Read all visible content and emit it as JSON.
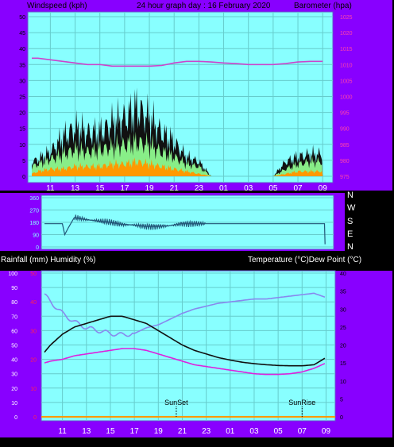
{
  "header": {
    "left": "Windspeed (kph)",
    "center": "24 hour graph day : 16 February 2020",
    "right": "Barometer (hpa)"
  },
  "dir_labels": [
    "N",
    "W",
    "S",
    "E",
    "N"
  ],
  "lower_header": {
    "left": "Rainfall (mm)  Humidity (%)",
    "right": "Temperature (°C)Dew Point (°C)"
  },
  "x_ticks": [
    "11",
    "13",
    "15",
    "17",
    "19",
    "21",
    "23",
    "01",
    "03",
    "05",
    "07",
    "09"
  ],
  "colors": {
    "panel_bg": "#88ffff",
    "frame": "#8800ff",
    "pressure": "#cc44cc",
    "humidity": "#8888ee",
    "temperature": "#111111",
    "dewpoint": "#dd22dd",
    "gust": "#111111",
    "wind_avg": "#88ee88",
    "wind_low": "#ff9900",
    "direction": "#225577"
  },
  "chart_data": [
    {
      "type": "area",
      "title": "24 hour graph day : 16 February 2020",
      "y_left_label": "Windspeed (kph)",
      "y_right_label": "Barometer (hpa)",
      "y_left_ticks": [
        "0",
        "5",
        "10",
        "15",
        "20",
        "25",
        "30",
        "35",
        "40",
        "45",
        "50"
      ],
      "y_right_ticks": [
        "975",
        "980",
        "985",
        "990",
        "995",
        "1000",
        "1005",
        "1010",
        "1015",
        "1020",
        "1025"
      ],
      "ylim_left": [
        0,
        50
      ],
      "ylim_right": [
        975,
        1025
      ],
      "x_hours": [
        9.5,
        10,
        11,
        12,
        13,
        14,
        15,
        16,
        17,
        18,
        19,
        20,
        21,
        22,
        23,
        24,
        25,
        26,
        27,
        28,
        29,
        30,
        31,
        32,
        33
      ],
      "series": [
        {
          "name": "Gust",
          "values": [
            6,
            7,
            10,
            16,
            20,
            18,
            18,
            22,
            24,
            28,
            24,
            18,
            14,
            8,
            6,
            0,
            0,
            0,
            0,
            0,
            0,
            6,
            8,
            9,
            9
          ]
        },
        {
          "name": "Average",
          "values": [
            4,
            5,
            7,
            9,
            11,
            10,
            11,
            12,
            13,
            14,
            13,
            10,
            8,
            5,
            4,
            0,
            0,
            0,
            0,
            0,
            0,
            3,
            5,
            6,
            6
          ]
        },
        {
          "name": "Low",
          "values": [
            1,
            2,
            3,
            3,
            4,
            4,
            4,
            5,
            5,
            6,
            5,
            4,
            3,
            2,
            1,
            0,
            0,
            0,
            0,
            0,
            0,
            1,
            2,
            2,
            2
          ]
        },
        {
          "name": "Pressure",
          "axis": "right",
          "values": [
            1012,
            1012,
            1011.5,
            1011,
            1010.5,
            1010,
            1010,
            1009.5,
            1009.5,
            1009.5,
            1009.5,
            1009.7,
            1010.5,
            1011,
            1011,
            1010.8,
            1010.5,
            1010.3,
            1010,
            1010,
            1010,
            1010.3,
            1010.8,
            1011,
            1011
          ]
        }
      ]
    },
    {
      "type": "line",
      "y_ticks": [
        "0",
        "90",
        "180",
        "270",
        "360"
      ],
      "ylim": [
        0,
        360
      ],
      "series": [
        {
          "name": "Direction",
          "x_hours": [
            9.5,
            10,
            11,
            11.2,
            11.5,
            12,
            13,
            14,
            15,
            16,
            17,
            18,
            19,
            20,
            21,
            22,
            23,
            33,
            33.05
          ],
          "values": [
            170,
            170,
            170,
            90,
            140,
            215,
            200,
            190,
            180,
            165,
            160,
            150,
            150,
            155,
            170,
            170,
            170,
            170,
            20
          ]
        }
      ]
    },
    {
      "type": "line",
      "y_left_ticks": [
        "0",
        "10",
        "20",
        "30",
        "40",
        "50",
        "60",
        "70",
        "80",
        "90",
        "100"
      ],
      "y_left_rain_ticks": [
        "0",
        "10",
        "20",
        "30",
        "40",
        "50"
      ],
      "y_right_ticks": [
        "0",
        "5",
        "10",
        "15",
        "20",
        "25",
        "30",
        "35",
        "40"
      ],
      "ylim_humidity": [
        0,
        100
      ],
      "ylim_temperature": [
        0,
        40
      ],
      "x_hours": [
        9.5,
        10,
        11,
        12,
        13,
        14,
        15,
        16,
        17,
        18,
        19,
        20,
        21,
        22,
        23,
        24,
        25,
        26,
        27,
        28,
        29,
        30,
        31,
        32,
        33
      ],
      "series": [
        {
          "name": "Humidity",
          "axis": "left",
          "values": [
            85,
            80,
            72,
            66,
            62,
            60,
            58,
            57,
            58,
            62,
            64,
            68,
            72,
            75,
            77,
            79,
            80,
            81,
            82,
            82,
            83,
            84,
            85,
            86,
            83
          ]
        },
        {
          "name": "Temperature",
          "axis": "right",
          "values": [
            18,
            20,
            23,
            25,
            26,
            27,
            28,
            28,
            27,
            26,
            24,
            22,
            20,
            18.5,
            17.5,
            16.5,
            15.8,
            15.2,
            14.8,
            14.5,
            14.3,
            14.2,
            14.2,
            14.5,
            16.5
          ]
        },
        {
          "name": "Dew Point",
          "axis": "right",
          "values": [
            15,
            15.5,
            16,
            17,
            17.5,
            18,
            18.5,
            19,
            19,
            18.5,
            17.5,
            16.5,
            15.5,
            14.5,
            14,
            13.5,
            13,
            12.5,
            12,
            11.8,
            11.8,
            12,
            12.5,
            13.5,
            15
          ]
        },
        {
          "name": "Rainfall",
          "axis": "left",
          "values": [
            0,
            0,
            0,
            0,
            0,
            0,
            0,
            0,
            0,
            0,
            0,
            0,
            0,
            0,
            0,
            0,
            0,
            0,
            0,
            0,
            0,
            0,
            0,
            0,
            0
          ]
        }
      ],
      "markers": [
        {
          "label": "SunSet",
          "hour": 20.5
        },
        {
          "label": "SunRise",
          "hour": 31.0
        }
      ]
    }
  ]
}
